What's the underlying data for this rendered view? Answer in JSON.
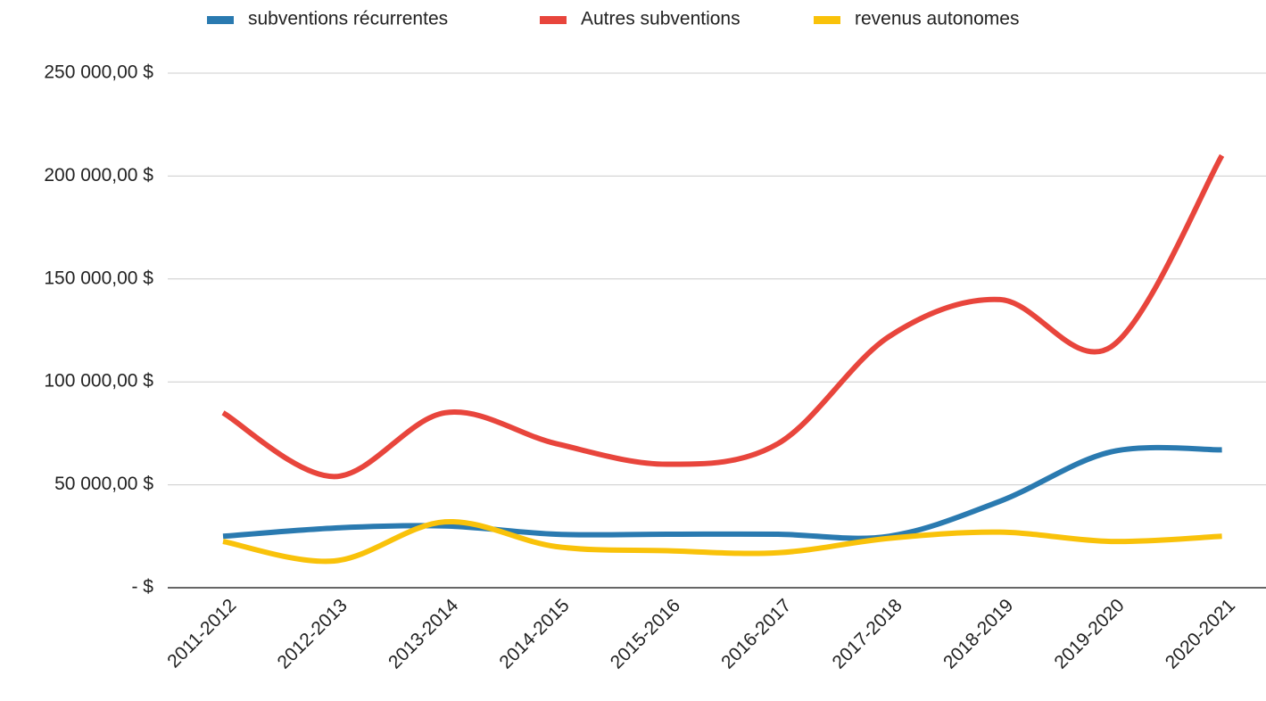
{
  "chart_data": {
    "type": "line",
    "categories": [
      "2011-2012",
      "2012-2013",
      "2013-2014",
      "2014-2015",
      "2015-2016",
      "2016-2017",
      "2017-2018",
      "2018-2019",
      "2019-2020",
      "2020-2021"
    ],
    "series": [
      {
        "name": "subventions récurrentes",
        "color": "#2a7ab0",
        "values": [
          25000,
          29000,
          30000,
          26000,
          26000,
          26000,
          25000,
          42000,
          66000,
          67000
        ]
      },
      {
        "name": "Autres subventions",
        "color": "#e8453c",
        "values": [
          85000,
          54000,
          85000,
          70000,
          60000,
          70000,
          122000,
          140000,
          117000,
          210000
        ]
      },
      {
        "name": "revenus autonomes",
        "color": "#f9c20a",
        "values": [
          22500,
          13000,
          32000,
          20000,
          18000,
          17000,
          24000,
          27000,
          22500,
          25000
        ]
      }
    ],
    "ylim": [
      0,
      250000
    ],
    "yticks": [
      {
        "value": 0,
        "label": "- $"
      },
      {
        "value": 50000,
        "label": "50 000,00 $"
      },
      {
        "value": 100000,
        "label": "100 000,00 $"
      },
      {
        "value": 150000,
        "label": "150 000,00 $"
      },
      {
        "value": 200000,
        "label": "200 000,00 $"
      },
      {
        "value": 250000,
        "label": "250 000,00 $"
      }
    ],
    "grid": true,
    "smooth": true,
    "legend": "top"
  }
}
